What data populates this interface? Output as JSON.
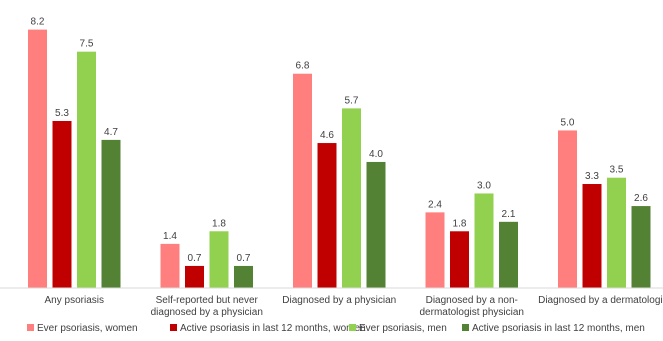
{
  "chart_data": {
    "type": "bar",
    "title": "",
    "xlabel": "",
    "ylabel": "",
    "ylim": [
      0,
      8.6
    ],
    "grid": false,
    "legend_position": "bottom",
    "categories": [
      [
        "Any psoriasis"
      ],
      [
        "Self-reported but never",
        "diagnosed by a physician"
      ],
      [
        "Diagnosed by a physician"
      ],
      [
        "Diagnosed by a non-",
        "dermatologist physician"
      ],
      [
        "Diagnosed by a dermatologist"
      ]
    ],
    "series": [
      {
        "name": "Ever psoriasis, women",
        "color": "#ff7f7f",
        "values": [
          8.2,
          1.4,
          6.8,
          2.4,
          5.0
        ],
        "labels": [
          "8.2",
          "1.4",
          "6.8",
          "2.4",
          "5.0"
        ]
      },
      {
        "name": "Active psoriasis in last 12 months, women",
        "color": "#c00000",
        "values": [
          5.3,
          0.7,
          4.6,
          1.8,
          3.3
        ],
        "labels": [
          "5.3",
          "0.7",
          "4.6",
          "1.8",
          "3.3"
        ]
      },
      {
        "name": "Ever psoriasis, men",
        "color": "#92d050",
        "values": [
          7.5,
          1.8,
          5.7,
          3.0,
          3.5
        ],
        "labels": [
          "7.5",
          "1.8",
          "5.7",
          "3.0",
          "3.5"
        ]
      },
      {
        "name": "Active psoriasis in last 12 months, men",
        "color": "#548235",
        "values": [
          4.7,
          0.7,
          4.0,
          2.1,
          2.6
        ],
        "labels": [
          "4.7",
          "0.7",
          "4.0",
          "2.1",
          "2.6"
        ]
      }
    ]
  }
}
